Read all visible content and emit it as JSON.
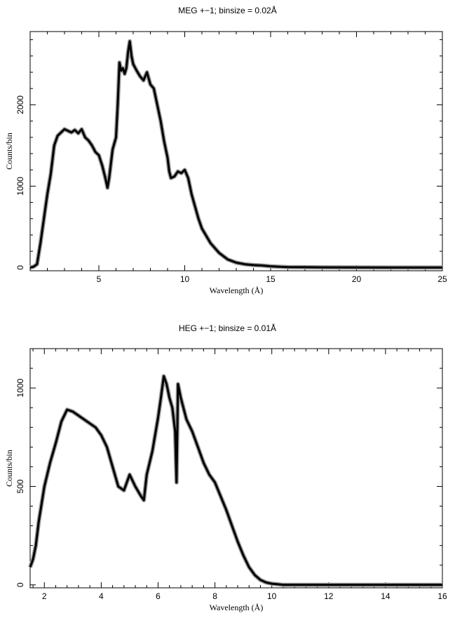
{
  "chart_data": [
    {
      "type": "line",
      "title": "MEG +−1; binsize = 0.02Å",
      "xlabel": "Wavelength (Å)",
      "ylabel": "Counts/bin",
      "xlim": [
        1.0,
        25.0
      ],
      "ylim": [
        -40,
        2900
      ],
      "xticks": [
        5,
        10,
        15,
        20,
        25
      ],
      "yticks": [
        0,
        1000,
        2000
      ],
      "grid": false,
      "series": [
        {
          "x": [
            1.0,
            1.2,
            1.4,
            1.6,
            1.8,
            2.0,
            2.2,
            2.4,
            2.6,
            2.8,
            3.0,
            3.2,
            3.4,
            3.6,
            3.8,
            4.0,
            4.2,
            4.4,
            4.6,
            4.8,
            5.0,
            5.2,
            5.4,
            5.5,
            5.6,
            5.8,
            6.0,
            6.1,
            6.2,
            6.3,
            6.4,
            6.5,
            6.6,
            6.7,
            6.8,
            6.9,
            7.0,
            7.2,
            7.4,
            7.6,
            7.8,
            8.0,
            8.2,
            8.4,
            8.6,
            8.8,
            9.0,
            9.1,
            9.2,
            9.4,
            9.6,
            9.8,
            10.0,
            10.2,
            10.4,
            10.6,
            10.8,
            11.0,
            11.5,
            12.0,
            12.5,
            13.0,
            13.5,
            14.0,
            14.5,
            15.0,
            15.5,
            16.0,
            17.0,
            18.0,
            20.0,
            22.0,
            25.0
          ],
          "y": [
            0,
            10,
            40,
            300,
            600,
            900,
            1150,
            1500,
            1620,
            1660,
            1700,
            1680,
            1660,
            1690,
            1650,
            1700,
            1600,
            1560,
            1500,
            1420,
            1380,
            1250,
            1080,
            980,
            1100,
            1450,
            1600,
            2000,
            2520,
            2420,
            2450,
            2380,
            2450,
            2650,
            2780,
            2600,
            2500,
            2420,
            2350,
            2300,
            2400,
            2250,
            2200,
            2000,
            1800,
            1550,
            1350,
            1180,
            1100,
            1120,
            1180,
            1160,
            1200,
            1100,
            900,
            750,
            600,
            480,
            300,
            180,
            100,
            60,
            40,
            30,
            25,
            15,
            10,
            6,
            4,
            2,
            1,
            0,
            0
          ]
        }
      ]
    },
    {
      "type": "line",
      "title": "HEG +−1; binsize = 0.01Å",
      "xlabel": "Wavelength (Å)",
      "ylabel": "Counts/bin",
      "xlim": [
        1.5,
        16.0
      ],
      "ylim": [
        -15,
        1200
      ],
      "xticks": [
        2,
        4,
        6,
        8,
        10,
        12,
        14,
        16
      ],
      "yticks": [
        0,
        500,
        1000
      ],
      "grid": false,
      "series": [
        {
          "x": [
            1.5,
            1.6,
            1.7,
            1.8,
            2.0,
            2.2,
            2.4,
            2.6,
            2.8,
            3.0,
            3.2,
            3.4,
            3.6,
            3.8,
            4.0,
            4.2,
            4.4,
            4.6,
            4.8,
            5.0,
            5.2,
            5.4,
            5.5,
            5.6,
            5.8,
            6.0,
            6.1,
            6.2,
            6.3,
            6.4,
            6.5,
            6.6,
            6.65,
            6.7,
            6.8,
            7.0,
            7.2,
            7.4,
            7.6,
            7.8,
            8.0,
            8.2,
            8.4,
            8.6,
            8.8,
            9.0,
            9.2,
            9.4,
            9.6,
            9.8,
            10.0,
            10.2,
            10.4,
            11.0,
            12.0,
            14.0,
            16.0
          ],
          "y": [
            90,
            130,
            200,
            320,
            500,
            620,
            720,
            830,
            890,
            880,
            860,
            840,
            820,
            800,
            760,
            700,
            600,
            500,
            480,
            560,
            500,
            450,
            430,
            560,
            680,
            850,
            950,
            1060,
            1020,
            950,
            900,
            780,
            520,
            1020,
            950,
            840,
            780,
            700,
            620,
            560,
            520,
            450,
            380,
            300,
            220,
            150,
            90,
            50,
            25,
            12,
            6,
            3,
            0,
            0,
            0,
            0,
            0
          ]
        }
      ]
    }
  ]
}
